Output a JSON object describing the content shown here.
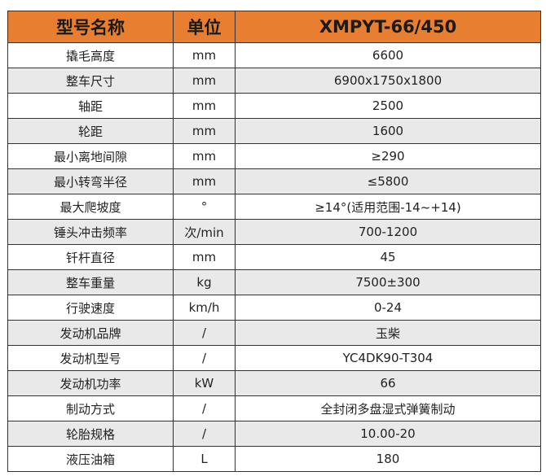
{
  "header": {
    "name": "型号名称",
    "unit": "单位",
    "model": "XMPYT-66/450"
  },
  "colors": {
    "header_bg": "#e77e30",
    "alt_row_bg": "#e9e9e9"
  },
  "rows": [
    {
      "name": "撬毛高度",
      "unit": "mm",
      "value": "6600"
    },
    {
      "name": "整车尺寸",
      "unit": "mm",
      "value": "6900x1750x1800"
    },
    {
      "name": "轴距",
      "unit": "mm",
      "value": "2500"
    },
    {
      "name": "轮距",
      "unit": "mm",
      "value": "1600"
    },
    {
      "name": "最小离地间隙",
      "unit": "mm",
      "value": "≥290"
    },
    {
      "name": "最小转弯半径",
      "unit": "mm",
      "value": "≤5800"
    },
    {
      "name": "最大爬坡度",
      "unit": "°",
      "value": "≥14°(适用范围-14~+14)"
    },
    {
      "name": "锤头冲击频率",
      "unit": "次/min",
      "value": "700-1200"
    },
    {
      "name": "钎杆直径",
      "unit": "mm",
      "value": "45"
    },
    {
      "name": "整车重量",
      "unit": "kg",
      "value": "7500±300"
    },
    {
      "name": "行驶速度",
      "unit": "km/h",
      "value": "0-24"
    },
    {
      "name": "发动机品牌",
      "unit": "/",
      "value": "玉柴"
    },
    {
      "name": "发动机型号",
      "unit": "/",
      "value": "YC4DK90-T304"
    },
    {
      "name": "发动机功率",
      "unit": "kW",
      "value": "66"
    },
    {
      "name": "制动方式",
      "unit": "/",
      "value": "全封闭多盘湿式弹簧制动"
    },
    {
      "name": "轮胎规格",
      "unit": "/",
      "value": "10.00-20"
    },
    {
      "name": "液压油箱",
      "unit": "L",
      "value": "180"
    }
  ]
}
